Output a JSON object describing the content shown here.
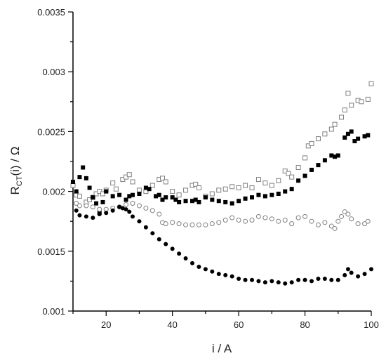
{
  "chart_data": {
    "type": "scatter",
    "title": "",
    "xlabel": "i / A",
    "ylabel_main": "R",
    "ylabel_sub": "CT",
    "ylabel_rest": "(i) / Ω",
    "xlim": [
      10,
      100
    ],
    "ylim": [
      0.001,
      0.0035
    ],
    "xticks": [
      20,
      40,
      60,
      80,
      100
    ],
    "xtick_labels": [
      "20",
      "40",
      "60",
      "80",
      "100"
    ],
    "yticks": [
      0.001,
      0.0015,
      0.002,
      0.0025,
      0.003,
      0.0035
    ],
    "ytick_labels": [
      "0.001",
      "0.0015",
      "0.002",
      "0.0025",
      "0.003",
      "0.0035"
    ],
    "grid": false,
    "legend": "none",
    "series": [
      {
        "marker": "square-open",
        "color": "#808080",
        "points": [
          [
            10,
            0.00205
          ],
          [
            11,
            0.00197
          ],
          [
            12,
            0.00196
          ],
          [
            14,
            0.00191
          ],
          [
            15,
            0.00193
          ],
          [
            16,
            0.00195
          ],
          [
            17,
            0.00198
          ],
          [
            18,
            0.002
          ],
          [
            19,
            0.00198
          ],
          [
            20,
            0.00201
          ],
          [
            22,
            0.00207
          ],
          [
            23,
            0.00202
          ],
          [
            25,
            0.0021
          ],
          [
            26,
            0.00212
          ],
          [
            27,
            0.00214
          ],
          [
            28,
            0.00208
          ],
          [
            30,
            0.00201
          ],
          [
            32,
            0.002
          ],
          [
            34,
            0.00205
          ],
          [
            36,
            0.0021
          ],
          [
            37,
            0.00211
          ],
          [
            38,
            0.00208
          ],
          [
            40,
            0.002
          ],
          [
            42,
            0.00197
          ],
          [
            44,
            0.00201
          ],
          [
            46,
            0.00205
          ],
          [
            47,
            0.00206
          ],
          [
            48,
            0.00203
          ],
          [
            50,
            0.00196
          ],
          [
            52,
            0.00198
          ],
          [
            54,
            0.00201
          ],
          [
            56,
            0.00202
          ],
          [
            58,
            0.00204
          ],
          [
            60,
            0.00203
          ],
          [
            62,
            0.00205
          ],
          [
            64,
            0.00203
          ],
          [
            66,
            0.0021
          ],
          [
            68,
            0.00207
          ],
          [
            70,
            0.00205
          ],
          [
            72,
            0.00209
          ],
          [
            74,
            0.00217
          ],
          [
            75,
            0.00215
          ],
          [
            76,
            0.00212
          ],
          [
            78,
            0.0022
          ],
          [
            80,
            0.00228
          ],
          [
            81,
            0.00238
          ],
          [
            82,
            0.0024
          ],
          [
            84,
            0.00244
          ],
          [
            86,
            0.00248
          ],
          [
            88,
            0.00252
          ],
          [
            89,
            0.00256
          ],
          [
            91,
            0.00262
          ],
          [
            92,
            0.00268
          ],
          [
            93,
            0.00282
          ],
          [
            94,
            0.00272
          ],
          [
            96,
            0.00276
          ],
          [
            97,
            0.00275
          ],
          [
            99,
            0.00277
          ],
          [
            100,
            0.0029
          ]
        ]
      },
      {
        "marker": "square-filled",
        "color": "#000000",
        "points": [
          [
            10,
            0.00208
          ],
          [
            11,
            0.002
          ],
          [
            12,
            0.00212
          ],
          [
            13,
            0.0022
          ],
          [
            14,
            0.00211
          ],
          [
            15,
            0.00203
          ],
          [
            16,
            0.00195
          ],
          [
            17,
            0.0019
          ],
          [
            18,
            0.00182
          ],
          [
            19,
            0.00191
          ],
          [
            20,
            0.002
          ],
          [
            22,
            0.00196
          ],
          [
            24,
            0.00197
          ],
          [
            26,
            0.00193
          ],
          [
            27,
            0.00196
          ],
          [
            28,
            0.00197
          ],
          [
            30,
            0.00198
          ],
          [
            32,
            0.00203
          ],
          [
            33,
            0.00202
          ],
          [
            35,
            0.00196
          ],
          [
            36,
            0.00197
          ],
          [
            37,
            0.00193
          ],
          [
            38,
            0.00195
          ],
          [
            40,
            0.00195
          ],
          [
            41,
            0.00193
          ],
          [
            42,
            0.00191
          ],
          [
            44,
            0.00192
          ],
          [
            46,
            0.00192
          ],
          [
            47,
            0.00193
          ],
          [
            48,
            0.00191
          ],
          [
            50,
            0.00195
          ],
          [
            52,
            0.00193
          ],
          [
            54,
            0.00192
          ],
          [
            56,
            0.00191
          ],
          [
            58,
            0.0019
          ],
          [
            60,
            0.00192
          ],
          [
            62,
            0.00194
          ],
          [
            64,
            0.00195
          ],
          [
            66,
            0.00197
          ],
          [
            68,
            0.00196
          ],
          [
            70,
            0.00197
          ],
          [
            72,
            0.00198
          ],
          [
            74,
            0.002
          ],
          [
            76,
            0.00202
          ],
          [
            78,
            0.00209
          ],
          [
            80,
            0.00213
          ],
          [
            82,
            0.00218
          ],
          [
            84,
            0.00222
          ],
          [
            86,
            0.00226
          ],
          [
            88,
            0.0023
          ],
          [
            89,
            0.00229
          ],
          [
            90,
            0.0023
          ],
          [
            92,
            0.00245
          ],
          [
            93,
            0.00248
          ],
          [
            94,
            0.0025
          ],
          [
            95,
            0.00242
          ],
          [
            96,
            0.00244
          ],
          [
            98,
            0.00246
          ],
          [
            99,
            0.00247
          ]
        ]
      },
      {
        "marker": "circle-open",
        "color": "#808080",
        "points": [
          [
            11,
            0.0019
          ],
          [
            12,
            0.00188
          ],
          [
            14,
            0.00188
          ],
          [
            16,
            0.00187
          ],
          [
            18,
            0.00185
          ],
          [
            20,
            0.00185
          ],
          [
            22,
            0.00186
          ],
          [
            24,
            0.00187
          ],
          [
            26,
            0.00189
          ],
          [
            28,
            0.0019
          ],
          [
            30,
            0.00188
          ],
          [
            32,
            0.00186
          ],
          [
            34,
            0.00184
          ],
          [
            36,
            0.00181
          ],
          [
            37,
            0.00174
          ],
          [
            38,
            0.00173
          ],
          [
            40,
            0.00174
          ],
          [
            42,
            0.00173
          ],
          [
            44,
            0.00172
          ],
          [
            46,
            0.00172
          ],
          [
            48,
            0.00172
          ],
          [
            50,
            0.00172
          ],
          [
            52,
            0.00173
          ],
          [
            54,
            0.00174
          ],
          [
            56,
            0.00176
          ],
          [
            58,
            0.00178
          ],
          [
            60,
            0.00176
          ],
          [
            62,
            0.00175
          ],
          [
            64,
            0.00176
          ],
          [
            66,
            0.00179
          ],
          [
            68,
            0.00178
          ],
          [
            70,
            0.00177
          ],
          [
            72,
            0.00175
          ],
          [
            74,
            0.00176
          ],
          [
            76,
            0.00173
          ],
          [
            78,
            0.00178
          ],
          [
            80,
            0.00179
          ],
          [
            82,
            0.00175
          ],
          [
            84,
            0.00172
          ],
          [
            86,
            0.00174
          ],
          [
            88,
            0.00171
          ],
          [
            89,
            0.00169
          ],
          [
            90,
            0.00175
          ],
          [
            91,
            0.00179
          ],
          [
            92,
            0.00183
          ],
          [
            93,
            0.00181
          ],
          [
            94,
            0.00177
          ],
          [
            96,
            0.00173
          ],
          [
            98,
            0.00173
          ],
          [
            99,
            0.00175
          ]
        ]
      },
      {
        "marker": "circle-filled",
        "color": "#000000",
        "points": [
          [
            11,
            0.00184
          ],
          [
            12,
            0.0018
          ],
          [
            14,
            0.00179
          ],
          [
            16,
            0.00178
          ],
          [
            18,
            0.00181
          ],
          [
            20,
            0.00182
          ],
          [
            22,
            0.00184
          ],
          [
            24,
            0.00187
          ],
          [
            25,
            0.00186
          ],
          [
            26,
            0.00185
          ],
          [
            27,
            0.00183
          ],
          [
            28,
            0.00179
          ],
          [
            30,
            0.00175
          ],
          [
            32,
            0.0017
          ],
          [
            34,
            0.00165
          ],
          [
            36,
            0.0016
          ],
          [
            38,
            0.00156
          ],
          [
            40,
            0.00152
          ],
          [
            42,
            0.00148
          ],
          [
            44,
            0.00144
          ],
          [
            46,
            0.0014
          ],
          [
            48,
            0.00137
          ],
          [
            50,
            0.00135
          ],
          [
            52,
            0.00133
          ],
          [
            54,
            0.00131
          ],
          [
            56,
            0.0013
          ],
          [
            58,
            0.00129
          ],
          [
            60,
            0.00127
          ],
          [
            62,
            0.00126
          ],
          [
            64,
            0.00126
          ],
          [
            66,
            0.00125
          ],
          [
            68,
            0.00124
          ],
          [
            70,
            0.00125
          ],
          [
            72,
            0.00124
          ],
          [
            74,
            0.00123
          ],
          [
            76,
            0.00124
          ],
          [
            78,
            0.00126
          ],
          [
            80,
            0.00126
          ],
          [
            82,
            0.00125
          ],
          [
            84,
            0.00127
          ],
          [
            86,
            0.00127
          ],
          [
            88,
            0.00126
          ],
          [
            90,
            0.00126
          ],
          [
            92,
            0.0013
          ],
          [
            93,
            0.00135
          ],
          [
            94,
            0.00132
          ],
          [
            96,
            0.00129
          ],
          [
            98,
            0.00131
          ],
          [
            100,
            0.00135
          ]
        ]
      }
    ]
  }
}
